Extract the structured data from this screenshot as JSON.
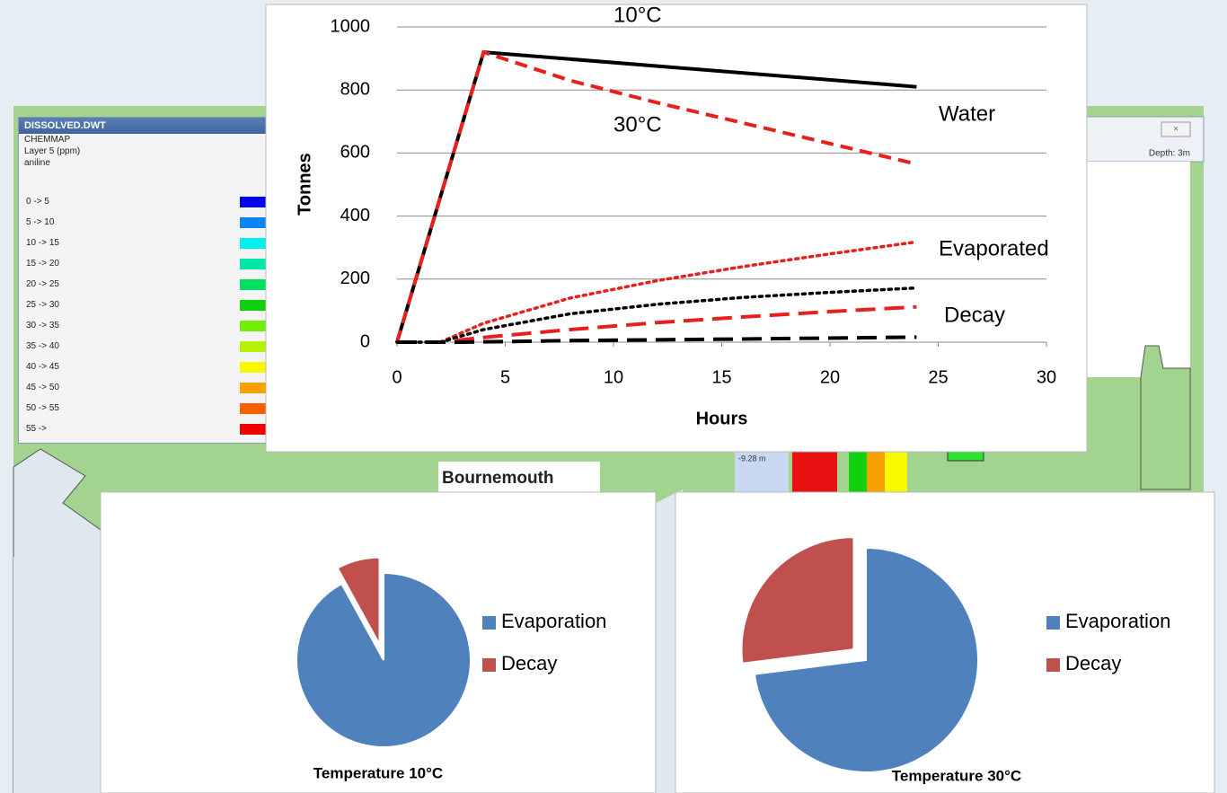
{
  "map": {
    "legend": {
      "title": "DISSOLVED.DWT",
      "lines": [
        "CHEMMAP",
        "Layer 5 (ppm)",
        "aniline"
      ],
      "items": [
        {
          "label": "0 -> 5",
          "color": "#0000f0"
        },
        {
          "label": "5 -> 10",
          "color": "#0a84f0"
        },
        {
          "label": "10 -> 15",
          "color": "#00f0f0"
        },
        {
          "label": "15 -> 20",
          "color": "#00e8a8"
        },
        {
          "label": "20 -> 25",
          "color": "#00e060"
        },
        {
          "label": "25 -> 30",
          "color": "#10d010"
        },
        {
          "label": "30 -> 35",
          "color": "#70f000"
        },
        {
          "label": "35 -> 40",
          "color": "#b8f000"
        },
        {
          "label": "40 -> 45",
          "color": "#f8f800"
        },
        {
          "label": "45 -> 50",
          "color": "#f8a000"
        },
        {
          "label": "50 -> 55",
          "color": "#f86000"
        },
        {
          "label": "55 ->",
          "color": "#f00000"
        }
      ]
    },
    "place": "Bournemouth",
    "depth": "Depth: 3m",
    "depth_marker": "-9.28 m"
  },
  "chart_data": [
    {
      "type": "line",
      "xlabel": "Hours",
      "ylabel": "Tonnes",
      "xlim": [
        0,
        30
      ],
      "ylim": [
        0,
        1000
      ],
      "xticks": [
        0,
        5,
        10,
        15,
        20,
        25,
        30
      ],
      "yticks": [
        0,
        200,
        400,
        600,
        800,
        1000
      ],
      "grid": true,
      "annotations": [
        "10°C",
        "30°C",
        "Water",
        "Evaporated",
        "Decay"
      ],
      "series": [
        {
          "color": "#000000",
          "style": "solid",
          "x": [
            0,
            4,
            24
          ],
          "values": [
            0,
            920,
            810
          ]
        },
        {
          "color": "#e8201c",
          "style": "dashed",
          "x": [
            0,
            4,
            8,
            12,
            16,
            20,
            24
          ],
          "values": [
            0,
            920,
            830,
            760,
            695,
            630,
            565
          ]
        },
        {
          "color": "#e8201c",
          "style": "dotted",
          "x": [
            0,
            2,
            4,
            8,
            12,
            16,
            20,
            24
          ],
          "values": [
            0,
            0,
            60,
            140,
            195,
            240,
            280,
            318
          ]
        },
        {
          "color": "#000000",
          "style": "dotted",
          "x": [
            0,
            2,
            4,
            8,
            12,
            16,
            20,
            24
          ],
          "values": [
            0,
            0,
            40,
            90,
            120,
            142,
            158,
            172
          ]
        },
        {
          "color": "#e8201c",
          "style": "longdash",
          "x": [
            0,
            2,
            4,
            8,
            12,
            16,
            20,
            24
          ],
          "values": [
            0,
            0,
            15,
            40,
            62,
            80,
            97,
            112
          ]
        },
        {
          "color": "#000000",
          "style": "longdash",
          "x": [
            0,
            3,
            8,
            16,
            24
          ],
          "values": [
            0,
            0,
            5,
            10,
            16
          ]
        }
      ]
    },
    {
      "type": "pie",
      "title": "Temperature 10°C",
      "categories": [
        "Evaporation",
        "Decay"
      ],
      "values": [
        92,
        8
      ],
      "colors": [
        "#4f81bd",
        "#c0504d"
      ]
    },
    {
      "type": "pie",
      "title": "Temperature 30°C",
      "categories": [
        "Evaporation",
        "Decay"
      ],
      "values": [
        73,
        27
      ],
      "colors": [
        "#4f81bd",
        "#c0504d"
      ]
    }
  ]
}
